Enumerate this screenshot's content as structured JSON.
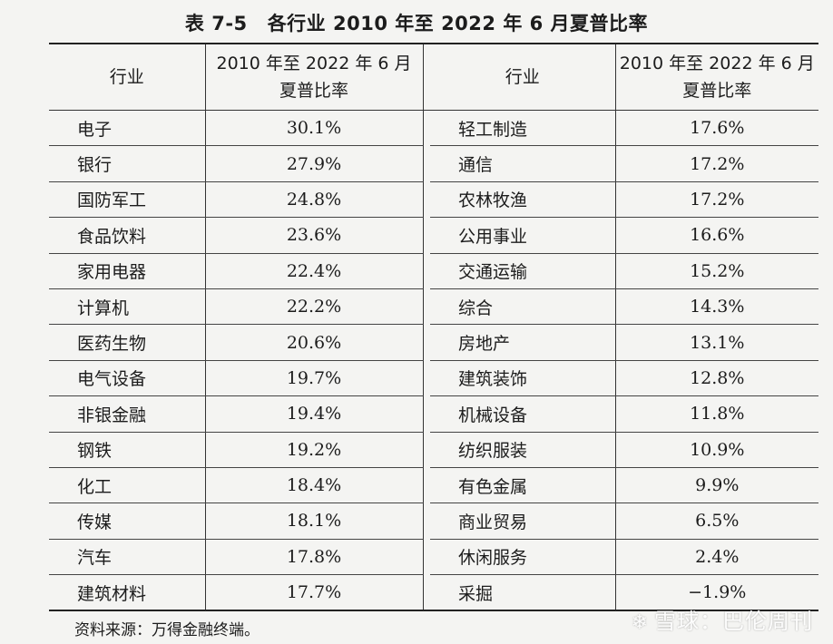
{
  "title": {
    "number": "表 7-5",
    "text": "各行业 2010 年至 2022 年 6 月夏普比率"
  },
  "table": {
    "headers": {
      "industry": "行业",
      "ratio_line1": "2010 年至 2022 年 6 月",
      "ratio_line2": "夏普比率"
    },
    "left": [
      {
        "industry": "电子",
        "ratio": "30.1%"
      },
      {
        "industry": "银行",
        "ratio": "27.9%"
      },
      {
        "industry": "国防军工",
        "ratio": "24.8%"
      },
      {
        "industry": "食品饮料",
        "ratio": "23.6%"
      },
      {
        "industry": "家用电器",
        "ratio": "22.4%"
      },
      {
        "industry": "计算机",
        "ratio": "22.2%"
      },
      {
        "industry": "医药生物",
        "ratio": "20.6%"
      },
      {
        "industry": "电气设备",
        "ratio": "19.7%"
      },
      {
        "industry": "非银金融",
        "ratio": "19.4%"
      },
      {
        "industry": "钢铁",
        "ratio": "19.2%"
      },
      {
        "industry": "化工",
        "ratio": "18.4%"
      },
      {
        "industry": "传媒",
        "ratio": "18.1%"
      },
      {
        "industry": "汽车",
        "ratio": "17.8%"
      },
      {
        "industry": "建筑材料",
        "ratio": "17.7%"
      }
    ],
    "right": [
      {
        "industry": "轻工制造",
        "ratio": "17.6%"
      },
      {
        "industry": "通信",
        "ratio": "17.2%"
      },
      {
        "industry": "农林牧渔",
        "ratio": "17.2%"
      },
      {
        "industry": "公用事业",
        "ratio": "16.6%"
      },
      {
        "industry": "交通运输",
        "ratio": "15.2%"
      },
      {
        "industry": "综合",
        "ratio": "14.3%"
      },
      {
        "industry": "房地产",
        "ratio": "13.1%"
      },
      {
        "industry": "建筑装饰",
        "ratio": "12.8%"
      },
      {
        "industry": "机械设备",
        "ratio": "11.8%"
      },
      {
        "industry": "纺织服装",
        "ratio": "10.9%"
      },
      {
        "industry": "有色金属",
        "ratio": "9.9%"
      },
      {
        "industry": "商业贸易",
        "ratio": "6.5%"
      },
      {
        "industry": "休闲服务",
        "ratio": "2.4%"
      },
      {
        "industry": "采掘",
        "ratio": "−1.9%"
      }
    ]
  },
  "source_note": "资料来源：万得金融终端。",
  "watermark": {
    "icon": "snowball-icon",
    "text": "雪球：巴伦周刊"
  }
}
